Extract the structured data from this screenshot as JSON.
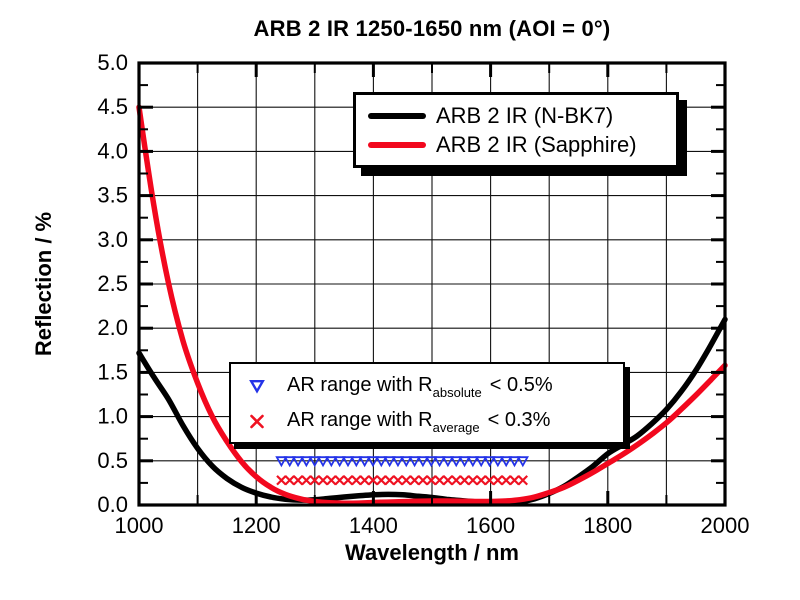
{
  "title": "ARB 2 IR 1250-1650 nm (AOI = 0°)",
  "legend": {
    "items": [
      {
        "label": "ARB 2 IR (N-BK7)",
        "color": "#000000"
      },
      {
        "label": "ARB 2 IR (Sapphire)",
        "color": "#F2081E"
      }
    ]
  },
  "annotation": {
    "rows": [
      {
        "marker": "triangle-down-open",
        "color": "#2433E8",
        "prefix": "AR range with R",
        "sub": "absolute",
        "suffix": "< 0.5%"
      },
      {
        "marker": "x-cross",
        "color": "#EF1222",
        "prefix": "AR range with R",
        "sub": "average",
        "suffix": "< 0.3%"
      }
    ]
  },
  "chart_data": {
    "type": "line",
    "title": "ARB 2 IR 1250-1650 nm (AOI = 0°)",
    "xlabel": "Wavelength / nm",
    "ylabel": "Reflection / %",
    "xlim": [
      1000,
      2000
    ],
    "ylim": [
      0.0,
      5.0
    ],
    "grid": true,
    "x_grid_values": [
      1100,
      1200,
      1300,
      1400,
      1500,
      1600,
      1700,
      1800,
      1900
    ],
    "y_grid_values": [
      0.5,
      1.0,
      1.5,
      2.0,
      2.5,
      3.0,
      3.5,
      4.0,
      4.5
    ],
    "x_ticks": [
      1000,
      1200,
      1400,
      1600,
      1800,
      2000
    ],
    "x_tick_labels": [
      "1000",
      "1200",
      "1400",
      "1600",
      "1800",
      "2000"
    ],
    "x_minor_ticks": [
      1100,
      1300,
      1500,
      1700,
      1900
    ],
    "y_ticks": [
      0.0,
      0.5,
      1.0,
      1.5,
      2.0,
      2.5,
      3.0,
      3.5,
      4.0,
      4.5,
      5.0
    ],
    "y_tick_labels": [
      "0.0",
      "0.5",
      "1.0",
      "1.5",
      "2.0",
      "2.5",
      "3.0",
      "3.5",
      "4.0",
      "4.5",
      "5.0"
    ],
    "y_minor_ticks": [
      0.25,
      0.75,
      1.25,
      1.75,
      2.25,
      2.75,
      3.25,
      3.75,
      4.25,
      4.75
    ],
    "x": [
      1000,
      1025,
      1050,
      1075,
      1100,
      1125,
      1150,
      1175,
      1200,
      1225,
      1250,
      1275,
      1300,
      1325,
      1350,
      1375,
      1400,
      1425,
      1450,
      1475,
      1500,
      1525,
      1550,
      1575,
      1600,
      1625,
      1650,
      1675,
      1700,
      1725,
      1750,
      1775,
      1800,
      1825,
      1850,
      1875,
      1900,
      1925,
      1950,
      1975,
      2000
    ],
    "series": [
      {
        "name": "ARB 2 IR (N-BK7)",
        "color": "#000000",
        "values": [
          1.72,
          1.45,
          1.2,
          0.9,
          0.64,
          0.44,
          0.3,
          0.2,
          0.135,
          0.09,
          0.065,
          0.055,
          0.06,
          0.075,
          0.09,
          0.105,
          0.115,
          0.12,
          0.115,
          0.1,
          0.085,
          0.065,
          0.05,
          0.035,
          0.025,
          0.022,
          0.035,
          0.07,
          0.13,
          0.21,
          0.32,
          0.44,
          0.58,
          0.68,
          0.78,
          0.92,
          1.08,
          1.28,
          1.52,
          1.8,
          2.1
        ]
      },
      {
        "name": "ARB 2 IR (Sapphire)",
        "color": "#F2081E",
        "values": [
          4.5,
          3.4,
          2.52,
          1.86,
          1.38,
          1.0,
          0.72,
          0.49,
          0.32,
          0.2,
          0.12,
          0.07,
          0.04,
          0.025,
          0.02,
          0.022,
          0.028,
          0.033,
          0.038,
          0.042,
          0.045,
          0.045,
          0.042,
          0.04,
          0.04,
          0.045,
          0.06,
          0.09,
          0.14,
          0.2,
          0.28,
          0.37,
          0.47,
          0.57,
          0.68,
          0.8,
          0.93,
          1.08,
          1.24,
          1.41,
          1.58
        ]
      }
    ],
    "marker_rows": [
      {
        "marker": "triangle-down-open",
        "color": "#2433E8",
        "y": 0.5,
        "x_start": 1243,
        "x_end": 1655,
        "count": 30,
        "meaning": "AR range with R absolute < 0.5%"
      },
      {
        "marker": "x-cross",
        "color": "#EF1222",
        "y": 0.28,
        "x_start": 1243,
        "x_end": 1655,
        "count": 30,
        "meaning": "AR range with R average < 0.3%"
      }
    ]
  }
}
